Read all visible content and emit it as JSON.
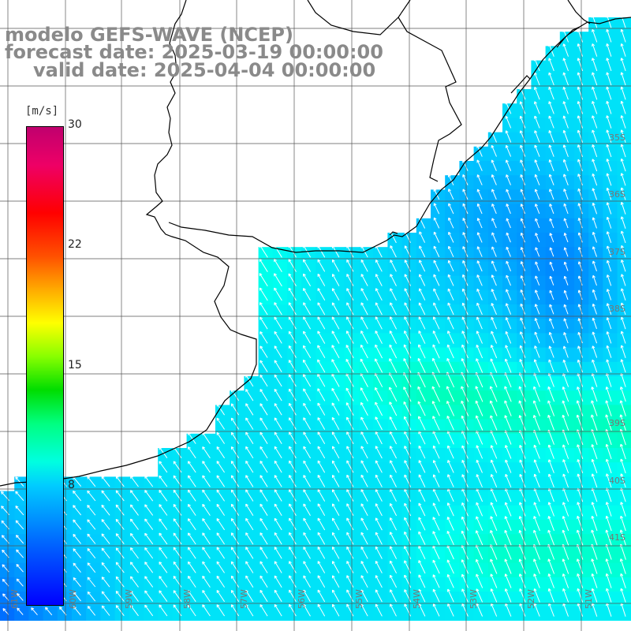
{
  "title": {
    "line1": "modelo GEFS-WAVE (NCEP)",
    "line2": "forecast date: 2025-03-19 00:00:00",
    "line3": "valid date: 2025-04-04 00:00:00"
  },
  "colorbar": {
    "unit": "[m/s]",
    "ticks": [
      "30",
      "22",
      "15",
      "8"
    ]
  },
  "axes": {
    "lat_labels": [
      "35S",
      "36S",
      "37S",
      "38S",
      "39S",
      "40S",
      "41S"
    ],
    "lon_labels": [
      "61W",
      "60W",
      "59W",
      "58W",
      "57W",
      "56W",
      "55W",
      "54W",
      "53W",
      "52W",
      "51W"
    ]
  },
  "map_legend": {
    "colors": {
      "low": "#0000ff",
      "mid": "#00ffe0",
      "high": "#c0006e",
      "land": "#ffffff",
      "coast": "#000000",
      "grid": "#555555",
      "arrows": "#ffffff"
    },
    "field": "wind speed and direction",
    "arrows": "white vectors"
  }
}
